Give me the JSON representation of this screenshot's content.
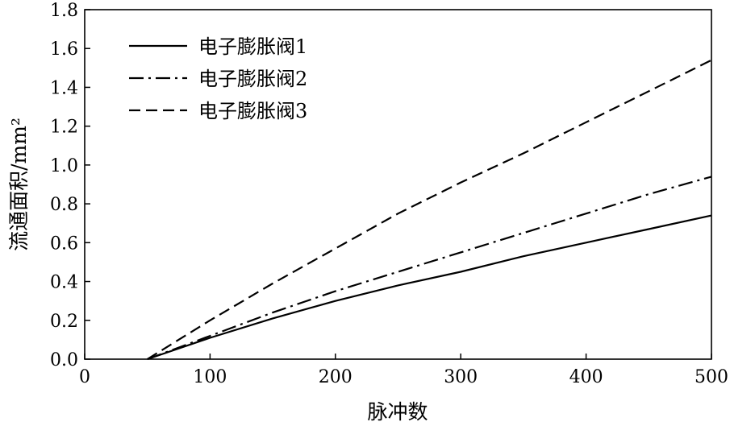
{
  "chart_data": {
    "type": "line",
    "title": "",
    "xlabel": "脉冲数",
    "ylabel": "流通面积/mm²",
    "xlim": [
      0,
      500
    ],
    "ylim": [
      0,
      1.8
    ],
    "xticks": [
      "0",
      "100",
      "200",
      "300",
      "400",
      "500"
    ],
    "yticks": [
      "0.0",
      "0.2",
      "0.4",
      "0.6",
      "0.8",
      "1.0",
      "1.2",
      "1.4",
      "1.6",
      "1.8"
    ],
    "grid": false,
    "legend_position": "top-left",
    "series": [
      {
        "name": "电子膨胀阀1",
        "style": "solid",
        "color": "#000000",
        "x": [
          50,
          100,
          150,
          200,
          250,
          300,
          350,
          400,
          450,
          500
        ],
        "y": [
          0.0,
          0.11,
          0.21,
          0.3,
          0.38,
          0.45,
          0.53,
          0.6,
          0.67,
          0.74
        ]
      },
      {
        "name": "电子膨胀阀2",
        "style": "dashdot",
        "color": "#000000",
        "x": [
          50,
          100,
          150,
          200,
          250,
          300,
          350,
          400,
          450,
          500
        ],
        "y": [
          0.0,
          0.12,
          0.24,
          0.35,
          0.45,
          0.55,
          0.65,
          0.75,
          0.85,
          0.94
        ]
      },
      {
        "name": "电子膨胀阀3",
        "style": "dashed",
        "color": "#000000",
        "x": [
          50,
          100,
          150,
          200,
          250,
          300,
          350,
          400,
          450,
          500
        ],
        "y": [
          0.0,
          0.2,
          0.39,
          0.57,
          0.75,
          0.91,
          1.06,
          1.22,
          1.38,
          1.54
        ]
      }
    ]
  }
}
